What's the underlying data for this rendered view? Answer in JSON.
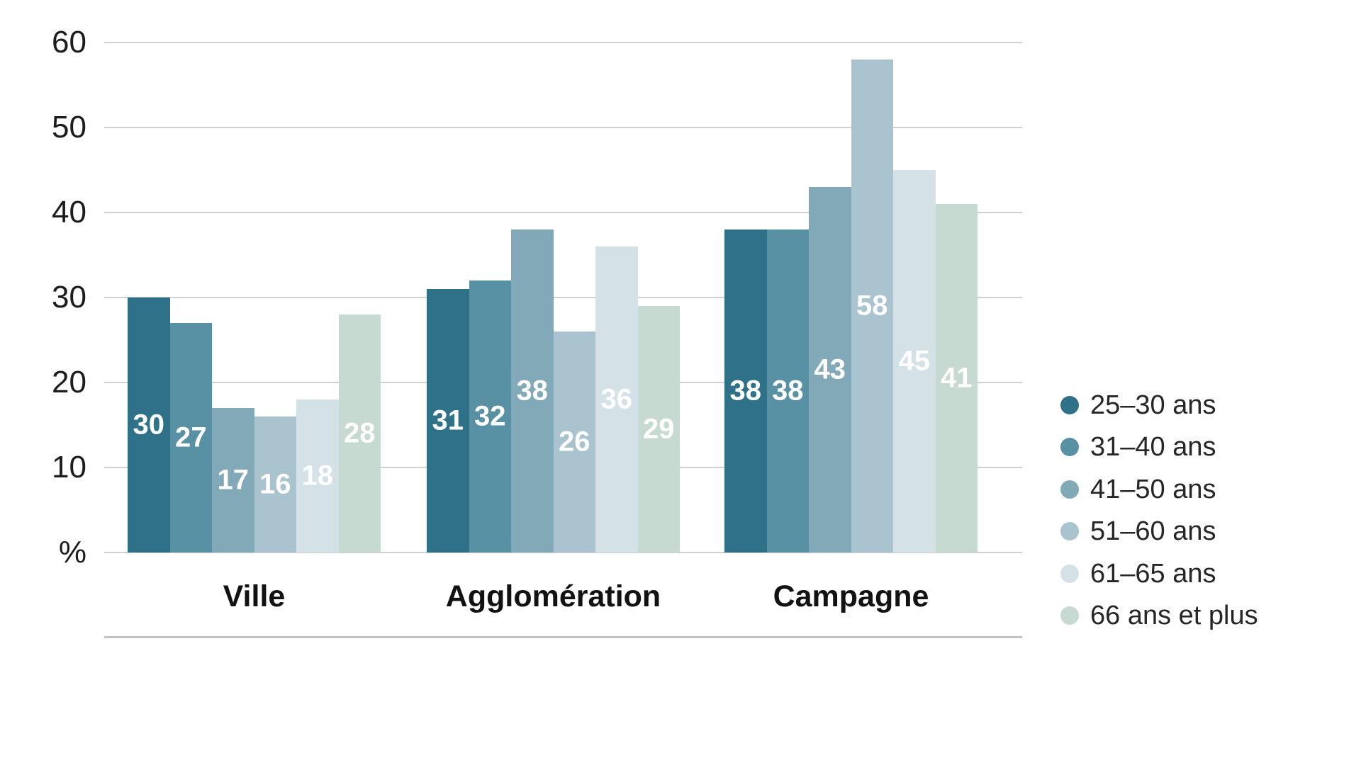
{
  "chart_data": {
    "type": "bar",
    "title": "",
    "categories": [
      "Ville",
      "Agglomération",
      "Campagne"
    ],
    "series": [
      {
        "name": "25–30 ans",
        "color": "#2F7189",
        "values": [
          30,
          31,
          38
        ]
      },
      {
        "name": "31–40 ans",
        "color": "#5890A4",
        "values": [
          27,
          32,
          38
        ]
      },
      {
        "name": "41–50 ans",
        "color": "#82A9B8",
        "values": [
          17,
          38,
          43
        ]
      },
      {
        "name": "51–60 ans",
        "color": "#A9C3CF",
        "values": [
          16,
          26,
          58
        ]
      },
      {
        "name": "61–65 ans",
        "color": "#D4E1E7",
        "values": [
          18,
          36,
          45
        ]
      },
      {
        "name": "66 ans et plus",
        "color": "#C6DAD1",
        "values": [
          28,
          29,
          41
        ]
      }
    ],
    "yticks": [
      60,
      50,
      40,
      30,
      20,
      10
    ],
    "unit_label": "%",
    "ylim": [
      0,
      60
    ],
    "grid": true,
    "legend_position": "right",
    "style": {
      "grid_color": "#cfcfcf",
      "divider_color": "#c2c2c2",
      "axis_text_color": "#1c1c1c",
      "category_text_color": "#121212",
      "value_label_color": "#ffffff",
      "legend_text_color": "#262626",
      "background": "#ffffff"
    }
  }
}
